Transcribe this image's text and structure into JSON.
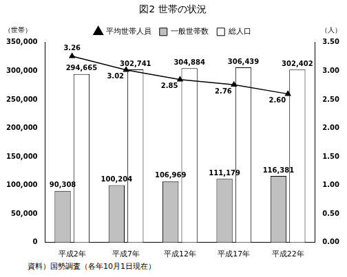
{
  "chart_data": {
    "type": "bar",
    "title": "図2 世帯の状況",
    "y_label": "（世帯）",
    "y2_label": "（人）",
    "annotation": "資料）国勢調査（各年10月1日現在）",
    "categories": [
      "平成2年",
      "平成7年",
      "平成12年",
      "平成17年",
      "平成22年"
    ],
    "series": [
      {
        "name": "一般世帯数",
        "type": "bar",
        "color": "#c0c0c0",
        "values": [
          90308,
          100204,
          106969,
          111179,
          116381
        ],
        "value_labels": [
          "90,308",
          "100,204",
          "106,969",
          "111,179",
          "116,381"
        ]
      },
      {
        "name": "総人口",
        "type": "bar",
        "color": "#ffffff",
        "values": [
          294665,
          302741,
          304884,
          306439,
          302402
        ],
        "value_labels": [
          "294,665",
          "302,741",
          "304,884",
          "306,439",
          "302,402"
        ]
      },
      {
        "name": "平均世帯人員",
        "type": "line",
        "axis": "y2",
        "color": "#000000",
        "marker": "triangle",
        "values": [
          3.26,
          3.02,
          2.85,
          2.76,
          2.6
        ],
        "value_labels": [
          "3.26",
          "3.02",
          "2.85",
          "2.76",
          "2.60"
        ]
      }
    ],
    "ylim": [
      0,
      350000
    ],
    "yticks": [
      0,
      {
        "value": 50000,
        "label": "50,000"
      },
      {
        "value": 100000,
        "label": "100,000"
      },
      {
        "value": 150000,
        "label": "150,000"
      },
      {
        "value": 200000,
        "label": "200,000"
      },
      {
        "value": 250000,
        "label": "250,000"
      },
      {
        "value": 300000,
        "label": "300,000"
      },
      {
        "value": 350000,
        "label": "350,000"
      }
    ],
    "y2lim": [
      0,
      3.5
    ],
    "y2ticks": [
      {
        "value": 0,
        "label": "0.00"
      },
      {
        "value": 0.5,
        "label": "0.50"
      },
      {
        "value": 1,
        "label": "1.00"
      },
      {
        "value": 1.5,
        "label": "1.50"
      },
      {
        "value": 2,
        "label": "2.00"
      },
      {
        "value": 2.5,
        "label": "2.50"
      },
      {
        "value": 3,
        "label": "3.00"
      },
      {
        "value": 3.5,
        "label": "3.50"
      }
    ],
    "grid": false,
    "legend": "top",
    "data_labels": true
  }
}
